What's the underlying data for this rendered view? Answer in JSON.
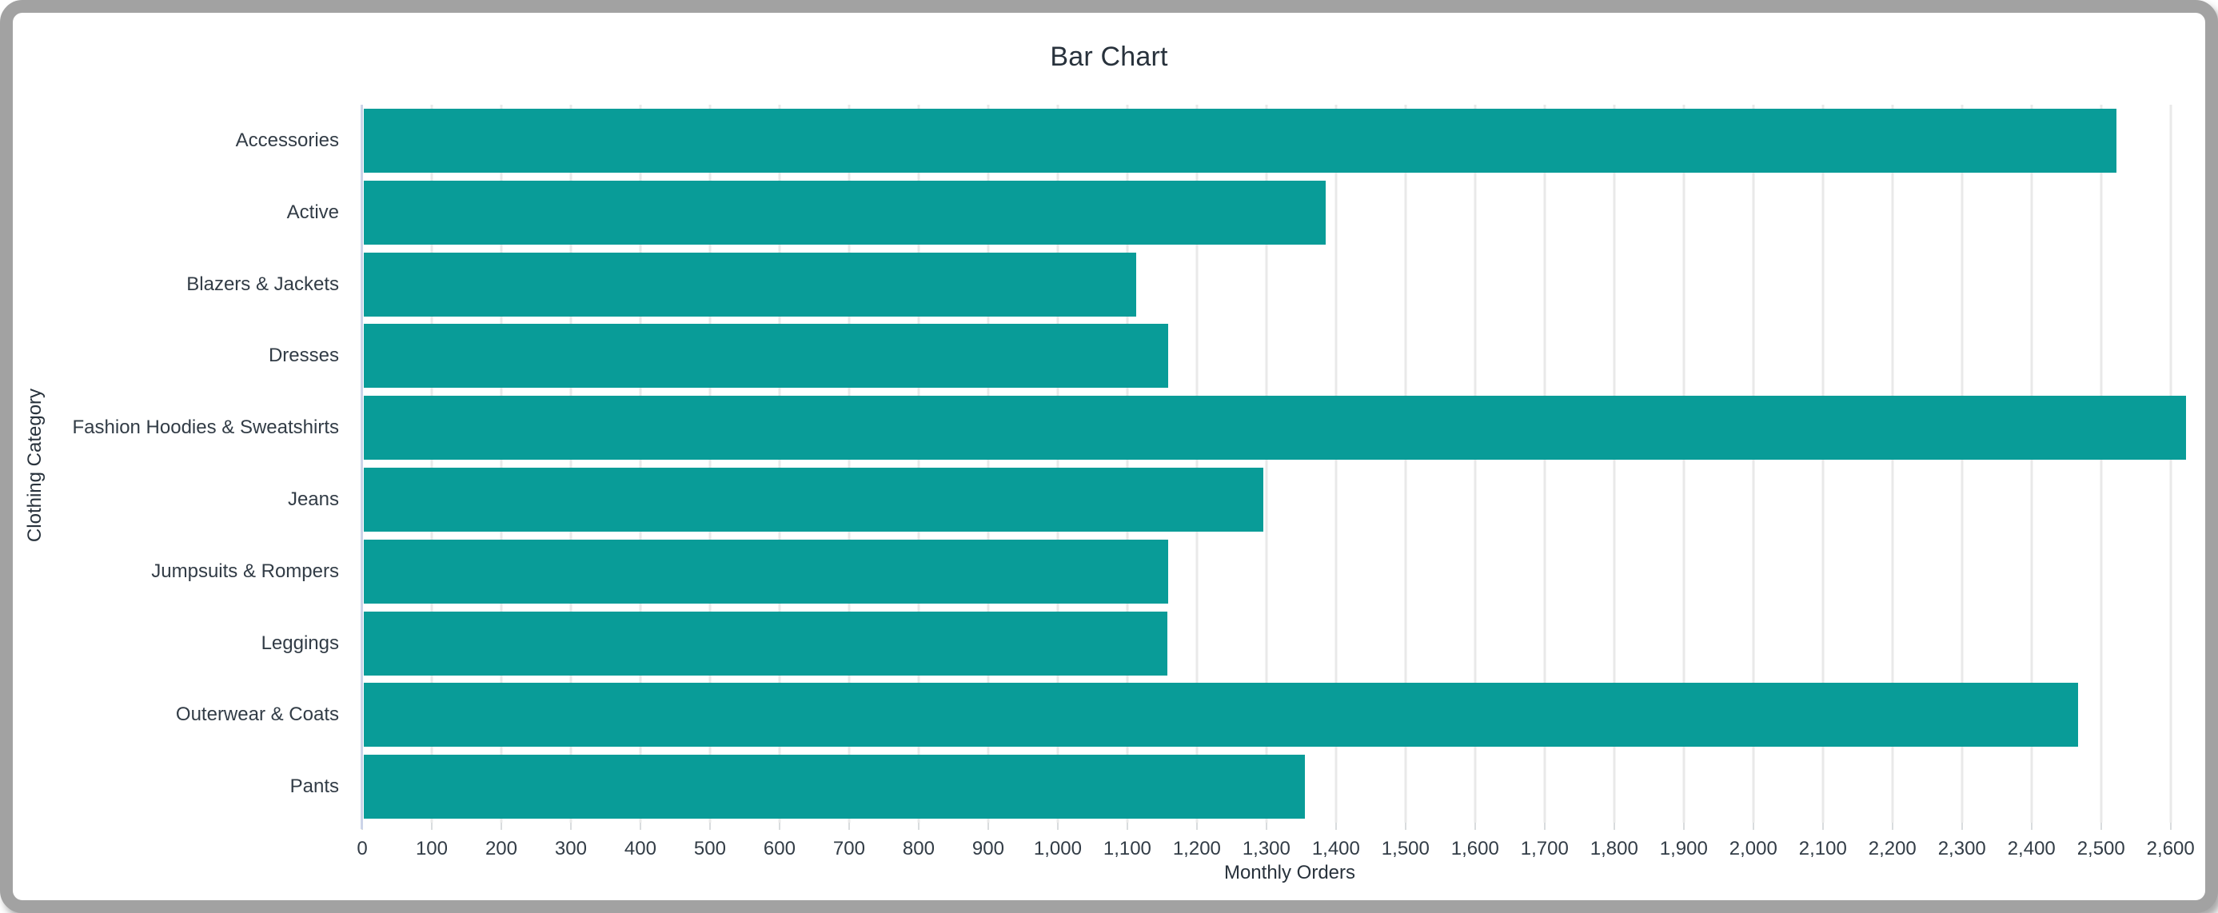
{
  "window": {
    "kind": "chart-card"
  },
  "chart_data": {
    "type": "bar",
    "orientation": "horizontal",
    "title": "Bar Chart",
    "xlabel": "Monthly Orders",
    "ylabel": "Clothing Category",
    "categories": [
      "Accessories",
      "Active",
      "Blazers & Jackets",
      "Dresses",
      "Fashion Hoodies & Sweatshirts",
      "Jeans",
      "Jumpsuits & Rompers",
      "Leggings",
      "Outerwear & Coats",
      "Pants"
    ],
    "values": [
      2520,
      1383,
      1110,
      1157,
      2620,
      1293,
      1157,
      1155,
      2465,
      1353
    ],
    "xlim": [
      0,
      2667
    ],
    "xtick_interval": 100,
    "xtick_min": 0,
    "xtick_max": 2600,
    "xtick_label_format": "thousands-comma",
    "grid": true,
    "legend": "none",
    "colors": {
      "bar": "#099c98",
      "grid": "#e9e9e9",
      "axis_line": "#ccd4e8",
      "tick_mark": "#d9dcde",
      "text": "#323c46",
      "title_text": "#28323c",
      "frame": "#a2a2a2",
      "background": "#ffffff"
    }
  }
}
